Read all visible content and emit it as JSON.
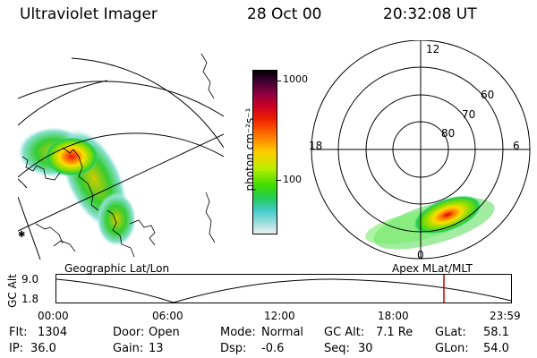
{
  "header": {
    "instrument": "Ultraviolet Imager",
    "date": "28 Oct 00",
    "time": "20:32:08 UT"
  },
  "colorbar": {
    "label": "photon cm⁻²s⁻¹",
    "ticks": [
      "1000",
      "100"
    ]
  },
  "polar_plot": {
    "mlt_labels": {
      "top": "12",
      "left": "18",
      "right": "6",
      "bottom": "0"
    },
    "lat_labels": [
      "60",
      "70",
      "80"
    ]
  },
  "plot_titles": {
    "left": "Geographic Lat/Lon",
    "right": "Apex MLat/MLT"
  },
  "timeline": {
    "axis_label": "GC Alt",
    "y_ticks": [
      "9.0",
      "1.8"
    ],
    "x_ticks": [
      "00:00",
      "06:00",
      "12:00",
      "18:00",
      "23:59"
    ],
    "marker_time": "20:32",
    "marker_color": "#cc0000"
  },
  "status": {
    "row1": [
      {
        "key": "Flt:",
        "value": "1304"
      },
      {
        "key": "Door:",
        "value": "Open"
      },
      {
        "key": "Mode:",
        "value": "Normal"
      },
      {
        "key": "GC Alt:",
        "value": "7.1 Re"
      },
      {
        "key": "GLat:",
        "value": "58.1"
      }
    ],
    "row2": [
      {
        "key": "IP:",
        "value": "36.0"
      },
      {
        "key": "Gain:",
        "value": "13"
      },
      {
        "key": "Dsp:",
        "value": "-0.6"
      },
      {
        "key": "Seq:",
        "value": "30"
      },
      {
        "key": "GLon:",
        "value": "54.0"
      }
    ]
  }
}
